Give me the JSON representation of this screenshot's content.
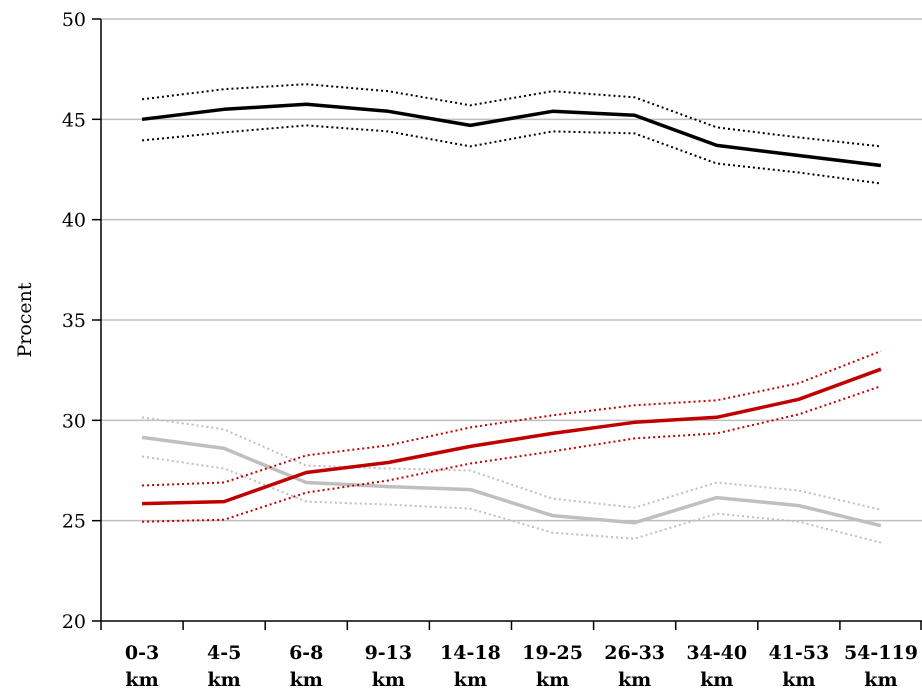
{
  "chart_data": {
    "type": "line",
    "title": "",
    "ylabel": "Procent",
    "xlabel": "",
    "ylim": [
      20,
      50
    ],
    "yticks": [
      20,
      25,
      30,
      35,
      40,
      45,
      50
    ],
    "grid": true,
    "categories": [
      [
        "0-3",
        "km"
      ],
      [
        "4-5",
        "km"
      ],
      [
        "6-8",
        "km"
      ],
      [
        "9-13",
        "km"
      ],
      [
        "14-18",
        "km"
      ],
      [
        "19-25",
        "km"
      ],
      [
        "26-33",
        "km"
      ],
      [
        "34-40",
        "km"
      ],
      [
        "41-53",
        "km"
      ],
      [
        "54-119",
        "km"
      ]
    ],
    "series": [
      {
        "color": "#000000",
        "values": [
          45.0,
          45.5,
          45.75,
          45.4,
          44.7,
          45.4,
          45.2,
          43.7,
          43.2,
          42.7
        ],
        "upper": [
          46.0,
          46.5,
          46.75,
          46.4,
          45.7,
          46.4,
          46.1,
          44.6,
          44.1,
          43.65
        ],
        "lower": [
          43.95,
          44.35,
          44.7,
          44.4,
          43.65,
          44.4,
          44.3,
          42.8,
          42.35,
          41.8
        ]
      },
      {
        "color": "#c00000",
        "values": [
          25.85,
          25.95,
          27.4,
          27.9,
          28.7,
          29.35,
          29.9,
          30.15,
          31.05,
          32.55
        ],
        "upper": [
          26.75,
          26.9,
          28.25,
          28.75,
          29.65,
          30.25,
          30.75,
          31.0,
          31.85,
          33.45
        ],
        "lower": [
          24.95,
          25.05,
          26.4,
          27.0,
          27.85,
          28.45,
          29.1,
          29.35,
          30.3,
          31.7
        ]
      },
      {
        "color": "#bfbfbf",
        "values": [
          29.15,
          28.6,
          26.9,
          26.7,
          26.55,
          25.25,
          24.9,
          26.15,
          25.75,
          24.75
        ],
        "upper": [
          30.15,
          29.55,
          27.75,
          27.6,
          27.5,
          26.1,
          25.65,
          26.9,
          26.5,
          25.55
        ],
        "lower": [
          28.2,
          27.6,
          25.95,
          25.8,
          25.6,
          24.4,
          24.1,
          25.35,
          24.95,
          23.9
        ]
      }
    ]
  }
}
